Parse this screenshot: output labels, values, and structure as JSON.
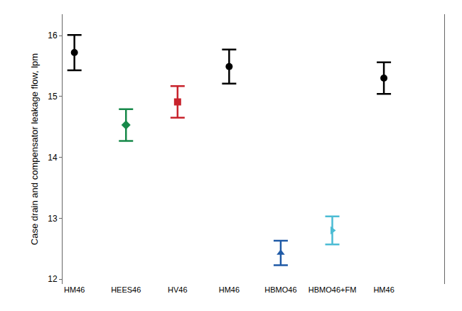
{
  "chart_data": {
    "type": "scatter",
    "y_label": "Case drain and compensator leakage flow, lpm",
    "categories": [
      "HM46",
      "HEES46",
      "HV46",
      "HM46",
      "HBMO46",
      "HBMO46+FM",
      "HM46"
    ],
    "values": [
      15.72,
      14.53,
      14.91,
      15.49,
      12.43,
      12.8,
      15.3
    ],
    "error": [
      0.29,
      0.26,
      0.26,
      0.28,
      0.2,
      0.23,
      0.26
    ],
    "colors": [
      "#000000",
      "#17894a",
      "#c8232c",
      "#000000",
      "#1f5aa6",
      "#4cbcd4",
      "#000000"
    ],
    "marker": [
      "circle",
      "diamond",
      "square",
      "circle",
      "triangle-up",
      "triangle-right",
      "circle"
    ],
    "ylim": [
      11.92,
      16.35
    ],
    "yticks": [
      12,
      13,
      14,
      15,
      16
    ],
    "grid": false
  }
}
